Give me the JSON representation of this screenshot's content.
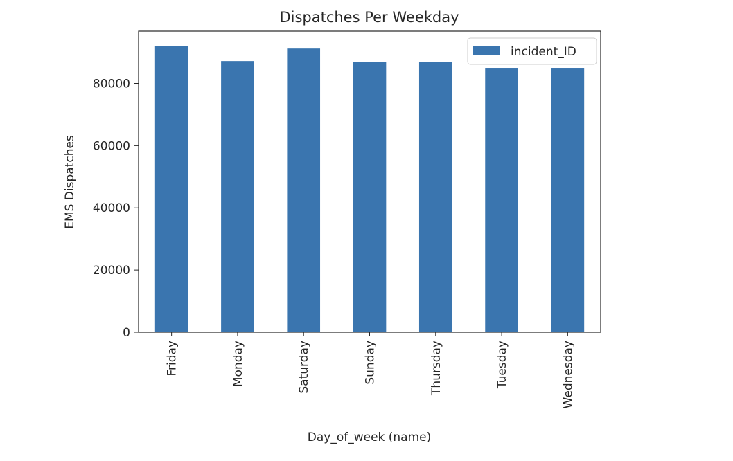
{
  "colors": {
    "bar": "#3a75af",
    "axis": "#262626",
    "background": "#ffffff"
  },
  "chart_data": {
    "type": "bar",
    "title": "Dispatches Per Weekday",
    "xlabel": "Day_of_week (name)",
    "ylabel": "EMS Dispatches",
    "categories": [
      "Friday",
      "Monday",
      "Saturday",
      "Sunday",
      "Thursday",
      "Tuesday",
      "Wednesday"
    ],
    "series": [
      {
        "name": "incident_ID",
        "values": [
          92100,
          87200,
          91200,
          86800,
          86800,
          85000,
          85000
        ]
      }
    ],
    "ylim": [
      0,
      96800
    ],
    "yticks": [
      0,
      20000,
      40000,
      60000,
      80000
    ],
    "grid": false,
    "legend": "top-right"
  }
}
